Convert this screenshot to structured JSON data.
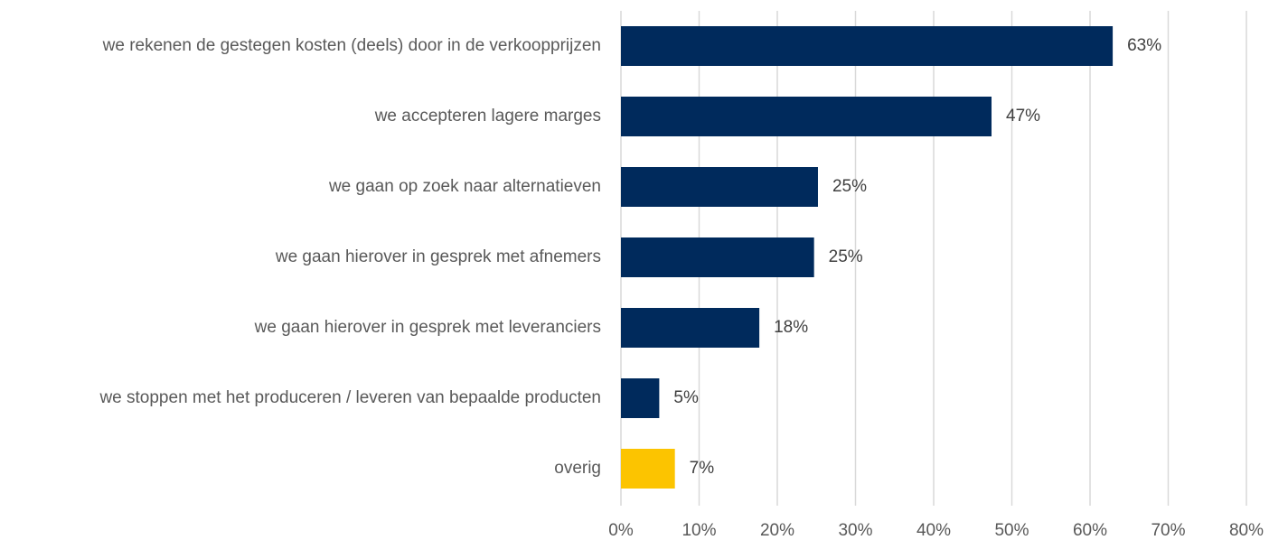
{
  "chart_data": {
    "type": "bar",
    "orientation": "horizontal",
    "categories": [
      "we rekenen de gestegen kosten (deels) door in de verkoopprijzen",
      "we accepteren lagere marges",
      "we gaan op zoek naar alternatieven",
      "we gaan hierover in gesprek met afnemers",
      "we gaan hierover in gesprek met leveranciers",
      "we stoppen met het produceren / leveren van bepaalde producten",
      "overig"
    ],
    "values": [
      62.9,
      47.4,
      25.2,
      24.7,
      17.7,
      4.9,
      6.9
    ],
    "value_labels": [
      "63%",
      "47%",
      "25%",
      "25%",
      "18%",
      "5%",
      "7%"
    ],
    "colors": [
      "#002a5c",
      "#002a5c",
      "#002a5c",
      "#002a5c",
      "#002a5c",
      "#002a5c",
      "#fcc400"
    ],
    "xlim": [
      0,
      80
    ],
    "xticks": [
      {
        "value": 0,
        "label": "0%"
      },
      {
        "value": 10,
        "label": "10%"
      },
      {
        "value": 20,
        "label": "20%"
      },
      {
        "value": 30,
        "label": "30%"
      },
      {
        "value": 40,
        "label": "40%"
      },
      {
        "value": 50,
        "label": "50%"
      },
      {
        "value": 60,
        "label": "60%"
      },
      {
        "value": 70,
        "label": "70%"
      },
      {
        "value": 80,
        "label": "80%"
      }
    ],
    "grid": true
  }
}
